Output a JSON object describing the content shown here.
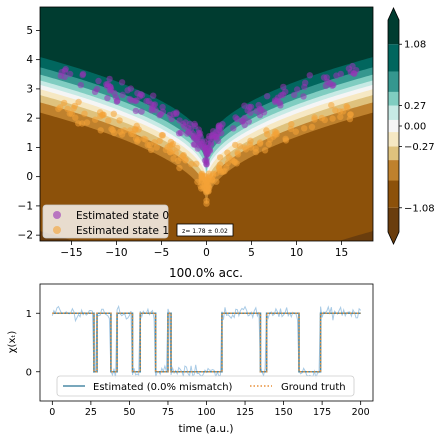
{
  "chart_data": [
    {
      "type": "heatmap",
      "title": "",
      "xlabel": "",
      "ylabel": "",
      "xlim": [
        -18.5,
        18.5
      ],
      "ylim": [
        -2.2,
        5.8
      ],
      "xticks": [
        -15,
        -10,
        -5,
        0,
        5,
        10,
        15
      ],
      "yticks": [
        -2,
        -1,
        0,
        1,
        2,
        3,
        4,
        5
      ],
      "decision_boundary": "y = 0.73*sqrt(|x|)",
      "colorbar": {
        "ticks": [
          "1.08",
          "0.27",
          "0.00",
          "-0.27",
          "-1.08"
        ],
        "tick_values": [
          1.08,
          0.27,
          0.0,
          -0.27,
          -1.08
        ],
        "range": [
          -1.4,
          1.4
        ],
        "extend": "both",
        "colors": [
          "#6a3d0d",
          "#8c510a",
          "#bf812d",
          "#dfc27d",
          "#f6e8c3",
          "#f5f5f5",
          "#c7eae5",
          "#80cdc1",
          "#35978f",
          "#01665e",
          "#003c30"
        ]
      },
      "series": [
        {
          "name": "Estimated state 0",
          "color": "#9932b8",
          "region": "above boundary, near boundary",
          "count": 180
        },
        {
          "name": "Estimated state 1",
          "color": "#f4a236",
          "region": "below boundary, near boundary",
          "count": 180
        }
      ],
      "legend": [
        "Estimated state 0",
        "Estimated state 1"
      ],
      "legend_position": "lower-left",
      "annotation": "z= 1.78 ± 0.02",
      "grid": false
    },
    {
      "type": "line",
      "title": "100.0% acc.",
      "xlabel": "time (a.u.)",
      "ylabel": "χ(xₜ)",
      "xlim": [
        -8,
        208
      ],
      "ylim": [
        -0.5,
        1.5
      ],
      "xticks": [
        0,
        25,
        50,
        75,
        100,
        125,
        150,
        175,
        200
      ],
      "yticks": [
        0,
        1
      ],
      "segments": [
        {
          "start": 0,
          "end": 27,
          "state": 1
        },
        {
          "start": 27,
          "end": 29,
          "state": 0
        },
        {
          "start": 29,
          "end": 38,
          "state": 1
        },
        {
          "start": 38,
          "end": 42,
          "state": 0
        },
        {
          "start": 42,
          "end": 52,
          "state": 1
        },
        {
          "start": 52,
          "end": 57,
          "state": 0
        },
        {
          "start": 57,
          "end": 67,
          "state": 1
        },
        {
          "start": 67,
          "end": 75,
          "state": 0
        },
        {
          "start": 75,
          "end": 77,
          "state": 1
        },
        {
          "start": 77,
          "end": 110,
          "state": 0
        },
        {
          "start": 110,
          "end": 135,
          "state": 1
        },
        {
          "start": 135,
          "end": 139,
          "state": 0
        },
        {
          "start": 139,
          "end": 160,
          "state": 1
        },
        {
          "start": 160,
          "end": 174,
          "state": 0
        },
        {
          "start": 174,
          "end": 200,
          "state": 1
        }
      ],
      "series": [
        {
          "name": "Estimated (0.0% mismatch)",
          "color": "#4c8aa6",
          "style": "solid"
        },
        {
          "name": "Ground truth",
          "color": "#e8903a",
          "style": "dotted"
        },
        {
          "name": "",
          "color": "#a9cbe6",
          "style": "noisy"
        }
      ],
      "legend_position": "bottom-center",
      "grid": false
    }
  ]
}
